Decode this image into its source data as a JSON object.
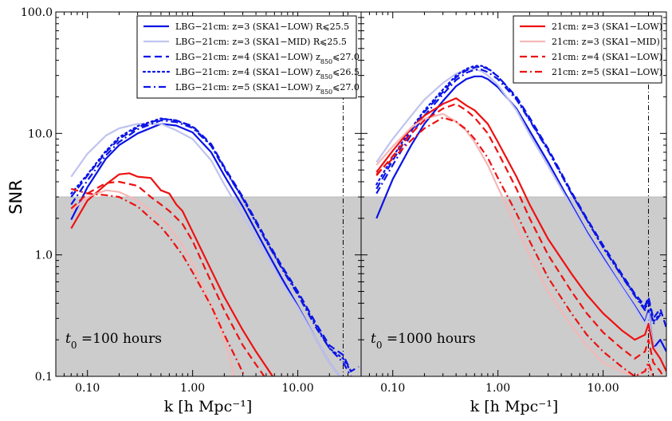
{
  "figure": {
    "ylabel": "SNR",
    "xlabel": "k [h Mpc⁻¹]",
    "y_ticks": [
      0.1,
      1.0,
      10.0,
      100.0
    ],
    "y_tick_labels": [
      "0.1",
      "1.0",
      "10.0",
      "100.0"
    ],
    "x_ticks": [
      0.1,
      1.0,
      10.0
    ],
    "x_tick_labels": [
      "0.10",
      "1.00",
      "10.00"
    ],
    "shade_below_snr": 3.0,
    "colors": {
      "blue": "#0a14e6",
      "blue_light": "#c0c3ef",
      "red": "#ee1111",
      "red_light": "#f5b7b7",
      "shade": "#cccccc"
    }
  },
  "chart_data": [
    {
      "type": "line",
      "panel": "left",
      "annotation": "t0 =100 hours",
      "annotation_parts": [
        "t",
        "0",
        " =100 hours"
      ],
      "xscale": "log",
      "yscale": "log",
      "xlim": [
        0.05,
        40
      ],
      "ylim": [
        0.1,
        100
      ],
      "vline_x": 27,
      "legend_position": "top-right",
      "series": [
        {
          "name": "LBG−21cm: z=3 (SKA1−LOW) R⩽25.5",
          "color": "blue",
          "style": "solid",
          "x": [
            0.07,
            0.1,
            0.15,
            0.2,
            0.3,
            0.5,
            0.7,
            1.0,
            1.5,
            2.0,
            3.0,
            5.0,
            7.0,
            10.0,
            15.0,
            20.0,
            25.0,
            27.0
          ],
          "y": [
            1.95,
            3.6,
            6.2,
            8.0,
            10.0,
            12.0,
            11.6,
            10.2,
            7.0,
            4.5,
            2.5,
            1.1,
            0.65,
            0.38,
            0.2,
            0.13,
            0.1,
            0.095
          ]
        },
        {
          "name": "LBG−21cm: z=3 (SKA1−MID) R⩽25.5",
          "color": "blue_light",
          "style": "solid",
          "x": [
            0.07,
            0.1,
            0.15,
            0.2,
            0.3,
            0.5,
            0.7,
            1.0,
            1.5,
            2.0,
            3.0,
            5.0,
            7.0,
            10.0,
            15.0,
            20.0,
            25.0
          ],
          "y": [
            4.4,
            6.8,
            9.6,
            11.0,
            12.0,
            12.0,
            10.6,
            9.0,
            6.0,
            3.8,
            2.1,
            1.0,
            0.6,
            0.37,
            0.2,
            0.13,
            0.1
          ]
        },
        {
          "name": "LBG−21cm: z=4 (SKA1−LOW) z850⩽27.0",
          "color": "blue",
          "style": "dashed",
          "x": [
            0.07,
            0.1,
            0.15,
            0.2,
            0.3,
            0.5,
            0.7,
            1.0,
            1.5,
            2.0,
            3.0,
            5.0,
            7.0,
            10.0,
            15.0,
            20.0,
            27.0,
            32.0,
            38.0
          ],
          "y": [
            3.0,
            4.5,
            7.0,
            9.0,
            11.2,
            13.2,
            12.8,
            11.5,
            8.2,
            5.3,
            3.0,
            1.35,
            0.82,
            0.5,
            0.27,
            0.18,
            0.15,
            0.11,
            0.12
          ]
        },
        {
          "name": "LBG−21cm: z=4 (SKA1−LOW) z850⩽26.5",
          "color": "blue",
          "style": "dotted",
          "x": [
            0.07,
            0.1,
            0.15,
            0.2,
            0.3,
            0.5,
            0.7,
            1.0,
            1.5,
            2.0,
            3.0,
            5.0,
            7.0,
            10.0,
            15.0,
            20.0,
            27.0,
            32.0
          ],
          "y": [
            3.2,
            4.6,
            7.2,
            9.3,
            11.5,
            13.3,
            12.8,
            11.3,
            8.0,
            5.2,
            2.9,
            1.3,
            0.8,
            0.48,
            0.26,
            0.17,
            0.14,
            0.11
          ]
        },
        {
          "name": "LBG−21cm: z=5 (SKA1−LOW) z850⩽27.0",
          "color": "blue",
          "style": "dashdot",
          "x": [
            0.07,
            0.1,
            0.15,
            0.2,
            0.3,
            0.5,
            0.7,
            1.0,
            1.5,
            2.0,
            3.0,
            5.0,
            7.0,
            10.0,
            15.0,
            20.0,
            27.0,
            32.0
          ],
          "y": [
            2.6,
            4.1,
            6.6,
            8.5,
            10.8,
            12.8,
            12.4,
            11.1,
            7.9,
            5.1,
            2.9,
            1.3,
            0.78,
            0.47,
            0.25,
            0.17,
            0.13,
            0.1
          ]
        },
        {
          "name": "21cm z=3 LOW",
          "color": "red",
          "style": "solid",
          "x": [
            0.07,
            0.1,
            0.15,
            0.2,
            0.25,
            0.3,
            0.4,
            0.5,
            0.6,
            0.7,
            0.8,
            1.0,
            1.5,
            2.0,
            3.0,
            4.0,
            5.0,
            6.0
          ],
          "y": [
            1.65,
            2.8,
            3.8,
            4.6,
            4.7,
            4.4,
            4.3,
            3.4,
            3.2,
            2.6,
            2.3,
            1.55,
            0.75,
            0.45,
            0.24,
            0.16,
            0.12,
            0.095
          ]
        },
        {
          "name": "21cm z=4 LOW",
          "color": "red",
          "style": "dashed",
          "x": [
            0.07,
            0.1,
            0.15,
            0.2,
            0.3,
            0.4,
            0.5,
            0.6,
            0.8,
            1.0,
            1.5,
            2.0,
            3.0,
            4.0,
            5.0
          ],
          "y": [
            2.4,
            3.2,
            3.9,
            4.0,
            3.7,
            3.0,
            2.6,
            2.3,
            1.8,
            1.3,
            0.6,
            0.35,
            0.18,
            0.125,
            0.095
          ]
        },
        {
          "name": "21cm z=3 MID",
          "color": "red_light",
          "style": "solid",
          "x": [
            0.07,
            0.1,
            0.15,
            0.2,
            0.3,
            0.4,
            0.5,
            0.6,
            0.8,
            1.0,
            1.5,
            2.0,
            2.5
          ],
          "y": [
            2.3,
            3.0,
            3.4,
            3.3,
            2.8,
            2.3,
            2.0,
            1.7,
            1.2,
            0.85,
            0.38,
            0.2,
            0.1
          ]
        },
        {
          "name": "21cm z=5 LOW",
          "color": "red",
          "style": "dashdot",
          "x": [
            0.07,
            0.1,
            0.15,
            0.2,
            0.3,
            0.4,
            0.5,
            0.6,
            0.8,
            1.0,
            1.5,
            2.0,
            2.7,
            3.2
          ],
          "y": [
            3.5,
            3.2,
            3.1,
            3.0,
            2.5,
            2.0,
            1.7,
            1.4,
            1.0,
            0.72,
            0.38,
            0.22,
            0.13,
            0.095
          ]
        }
      ],
      "legend": [
        {
          "label": "LBG−21cm: z=3 (SKA1−LOW) R⩽25.5",
          "color": "blue",
          "style": "solid"
        },
        {
          "label": "LBG−21cm: z=3 (SKA1−MID) R⩽25.5",
          "color": "blue_light",
          "style": "solid"
        },
        {
          "label": "LBG−21cm: z=4 (SKA1−LOW) z850⩽27.0",
          "color": "blue",
          "style": "dashed"
        },
        {
          "label": "LBG−21cm: z=4 (SKA1−LOW) z850⩽26.5",
          "color": "blue",
          "style": "dotted"
        },
        {
          "label": "LBG−21cm: z=5 (SKA1−LOW) z850⩽27.0",
          "color": "blue",
          "style": "dashdot"
        }
      ]
    },
    {
      "type": "line",
      "panel": "right",
      "annotation": "t0 =1000 hours",
      "annotation_parts": [
        "t",
        "0",
        " =1000 hours"
      ],
      "xscale": "log",
      "yscale": "log",
      "xlim": [
        0.05,
        40
      ],
      "ylim": [
        0.1,
        100
      ],
      "vline_x": 27,
      "legend_position": "top-right",
      "series": [
        {
          "name": "LBG z=3 LOW",
          "color": "blue",
          "style": "solid",
          "x": [
            0.07,
            0.1,
            0.15,
            0.2,
            0.3,
            0.4,
            0.5,
            0.6,
            0.7,
            0.8,
            1.0,
            1.5,
            2.0,
            3.0,
            5.0,
            7.0,
            10.0,
            15.0,
            20.0,
            25.0,
            27.0,
            30.0,
            35.0,
            40.0
          ],
          "y": [
            2.0,
            4.2,
            8.0,
            12.0,
            18.5,
            24.5,
            28.0,
            29.5,
            29.5,
            28.0,
            24.0,
            16.0,
            10.5,
            5.8,
            2.6,
            1.55,
            0.95,
            0.55,
            0.38,
            0.28,
            0.35,
            0.17,
            0.2,
            0.16
          ]
        },
        {
          "name": "LBG z=3 MID",
          "color": "blue_light",
          "style": "solid",
          "x": [
            0.07,
            0.1,
            0.15,
            0.2,
            0.3,
            0.4,
            0.5,
            0.6,
            0.7,
            0.8,
            1.0,
            1.5,
            2.0,
            3.0,
            5.0,
            7.0,
            10.0,
            15.0,
            20.0,
            25.0,
            27.0,
            30.0,
            35.0
          ],
          "y": [
            5.8,
            9.0,
            14.0,
            19.0,
            26.0,
            31.0,
            33.5,
            34.0,
            32.5,
            30.0,
            25.0,
            15.5,
            9.8,
            5.4,
            2.5,
            1.5,
            0.92,
            0.54,
            0.37,
            0.27,
            0.33,
            0.17,
            0.18
          ]
        },
        {
          "name": "LBG z=4 LOW 27.0",
          "color": "blue",
          "style": "dashed",
          "x": [
            0.07,
            0.1,
            0.15,
            0.2,
            0.3,
            0.4,
            0.5,
            0.6,
            0.7,
            0.8,
            1.0,
            1.5,
            2.0,
            3.0,
            5.0,
            7.0,
            10.0,
            15.0,
            20.0,
            25.0,
            27.0,
            30.0,
            35.0,
            40.0
          ],
          "y": [
            3.5,
            6.0,
            10.5,
            15.0,
            22.0,
            29.0,
            33.0,
            35.0,
            35.5,
            34.0,
            29.5,
            20.0,
            13.5,
            7.5,
            3.3,
            2.0,
            1.2,
            0.7,
            0.48,
            0.38,
            0.45,
            0.3,
            0.36,
            0.25
          ]
        },
        {
          "name": "LBG z=4 LOW 26.5",
          "color": "blue",
          "style": "dotted",
          "x": [
            0.07,
            0.1,
            0.15,
            0.2,
            0.3,
            0.4,
            0.5,
            0.6,
            0.7,
            0.8,
            1.0,
            1.5,
            2.0,
            3.0,
            5.0,
            7.0,
            10.0,
            15.0,
            20.0,
            25.0,
            27.0,
            30.0,
            35.0
          ],
          "y": [
            3.8,
            6.4,
            11.0,
            15.5,
            23.0,
            30.0,
            34.0,
            36.0,
            36.0,
            34.5,
            29.5,
            19.5,
            13.0,
            7.3,
            3.2,
            1.95,
            1.15,
            0.68,
            0.47,
            0.36,
            0.43,
            0.28,
            0.33
          ]
        },
        {
          "name": "LBG z=5 LOW",
          "color": "blue",
          "style": "dashdot",
          "x": [
            0.07,
            0.1,
            0.15,
            0.2,
            0.3,
            0.4,
            0.5,
            0.6,
            0.7,
            0.8,
            1.0,
            1.5,
            2.0,
            3.0,
            5.0,
            7.0,
            10.0,
            15.0,
            20.0,
            25.0,
            27.0,
            30.0,
            35.0
          ],
          "y": [
            3.2,
            5.5,
            9.8,
            14.0,
            21.0,
            27.5,
            31.5,
            33.5,
            33.5,
            32.0,
            28.0,
            19.0,
            12.8,
            7.2,
            3.2,
            1.95,
            1.15,
            0.67,
            0.46,
            0.35,
            0.42,
            0.27,
            0.32
          ]
        },
        {
          "name": "21cm: z=3 (SKA1−LOW)",
          "color": "red",
          "style": "solid",
          "x": [
            0.07,
            0.1,
            0.15,
            0.2,
            0.3,
            0.4,
            0.5,
            0.6,
            0.8,
            1.0,
            1.5,
            2.0,
            3.0,
            5.0,
            7.0,
            10.0,
            15.0,
            20.0,
            25.0,
            27.0,
            30.0,
            35.0,
            40.0
          ],
          "y": [
            4.8,
            7.2,
            11.0,
            14.0,
            17.5,
            19.5,
            17.0,
            15.5,
            12.0,
            8.5,
            4.4,
            2.6,
            1.35,
            0.7,
            0.47,
            0.33,
            0.24,
            0.2,
            0.22,
            0.27,
            0.17,
            0.14,
            0.11
          ]
        },
        {
          "name": "21cm: z=3 (SKA1−MID)",
          "color": "red_light",
          "style": "solid",
          "x": [
            0.07,
            0.1,
            0.15,
            0.2,
            0.3,
            0.4,
            0.5,
            0.6,
            0.8,
            1.0,
            1.5,
            2.0,
            3.0,
            5.0,
            7.0,
            10.0,
            15.0,
            20.0,
            25.0,
            27.0,
            30.0,
            35.0
          ],
          "y": [
            5.5,
            7.8,
            11.2,
            13.2,
            14.5,
            12.5,
            10.5,
            8.5,
            5.5,
            3.6,
            1.7,
            1.0,
            0.5,
            0.26,
            0.18,
            0.13,
            0.11,
            0.1,
            0.11,
            0.12,
            0.1,
            0.09
          ]
        },
        {
          "name": "21cm: z=4 (SKA1−LOW)",
          "color": "red",
          "style": "dashed",
          "x": [
            0.07,
            0.1,
            0.15,
            0.2,
            0.3,
            0.4,
            0.5,
            0.6,
            0.8,
            1.0,
            1.5,
            2.0,
            3.0,
            5.0,
            7.0,
            10.0,
            15.0,
            20.0,
            25.0,
            27.0,
            30.0,
            35.0,
            40.0
          ],
          "y": [
            4.5,
            6.5,
            10.0,
            12.8,
            16.0,
            17.5,
            15.5,
            13.5,
            10.0,
            7.0,
            3.5,
            2.0,
            1.0,
            0.5,
            0.33,
            0.23,
            0.17,
            0.14,
            0.16,
            0.2,
            0.13,
            0.11,
            0.09
          ]
        },
        {
          "name": "21cm: z=5 (SKA1−LOW)",
          "color": "red",
          "style": "dashdot",
          "x": [
            0.07,
            0.1,
            0.15,
            0.2,
            0.3,
            0.4,
            0.5,
            0.6,
            0.8,
            1.0,
            1.5,
            2.0,
            3.0,
            5.0,
            7.0,
            10.0,
            15.0,
            20.0,
            25.0,
            27.0,
            30.0,
            35.0
          ],
          "y": [
            4.6,
            6.2,
            8.8,
            11.0,
            13.5,
            12.5,
            10.8,
            9.0,
            6.3,
            4.3,
            2.2,
            1.3,
            0.65,
            0.33,
            0.22,
            0.16,
            0.12,
            0.1,
            0.11,
            0.13,
            0.1,
            0.09
          ]
        }
      ],
      "legend": [
        {
          "label": "21cm: z=3 (SKA1−LOW)",
          "color": "red",
          "style": "solid"
        },
        {
          "label": "21cm: z=3 (SKA1−MID)",
          "color": "red_light",
          "style": "solid"
        },
        {
          "label": "21cm: z=4 (SKA1−LOW)",
          "color": "red",
          "style": "dashed"
        },
        {
          "label": "21cm: z=5 (SKA1−LOW)",
          "color": "red",
          "style": "dashdot"
        }
      ]
    }
  ]
}
